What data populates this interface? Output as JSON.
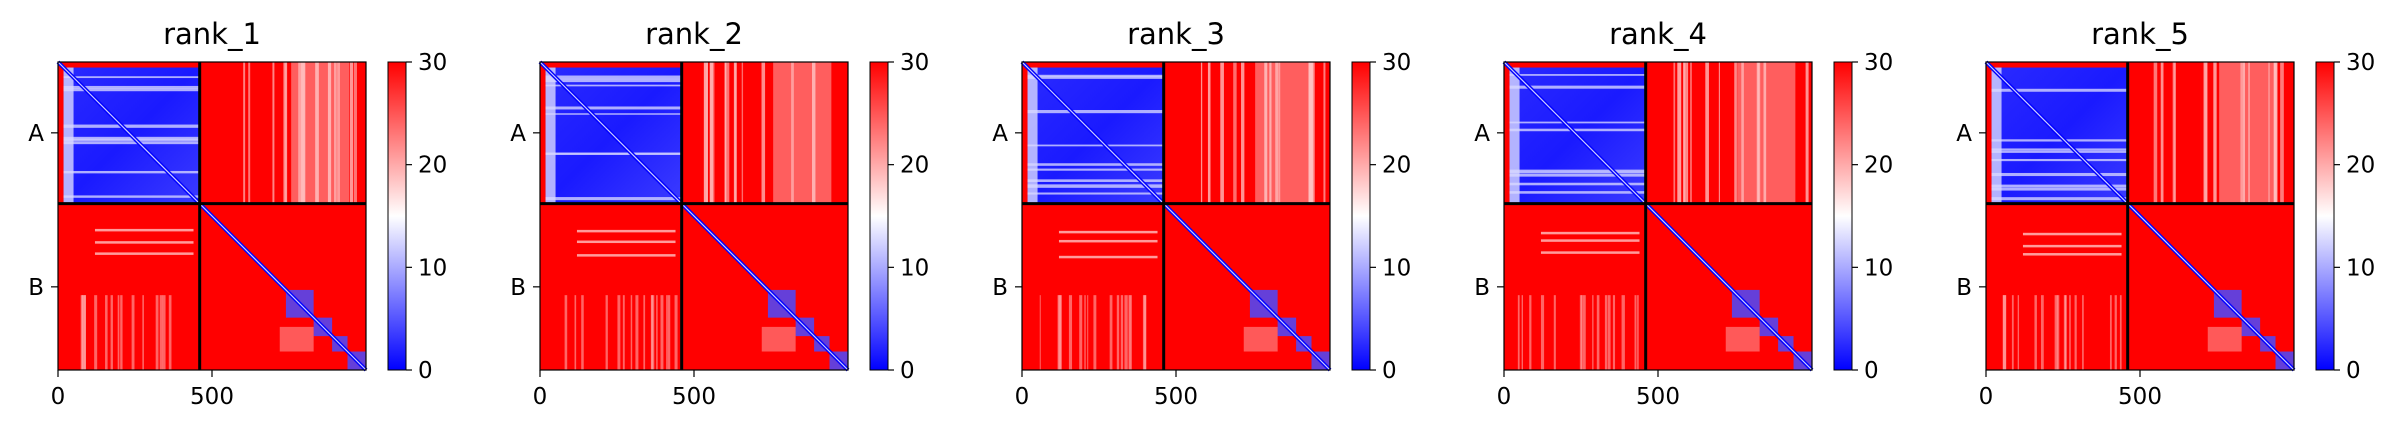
{
  "chart_data": [
    {
      "type": "heatmap",
      "title": "rank_1",
      "xlabel": "",
      "ylabel": "",
      "x_ticks": [
        0,
        500
      ],
      "y_tick_labels": [
        "A",
        "B"
      ],
      "chain_lengths": {
        "A": 460,
        "B": 540
      },
      "total_length": 1000,
      "colorbar": {
        "range": [
          0,
          30
        ],
        "ticks": [
          0,
          10,
          20,
          30
        ],
        "colormap": "bwr"
      },
      "grid": false
    },
    {
      "type": "heatmap",
      "title": "rank_2",
      "xlabel": "",
      "ylabel": "",
      "x_ticks": [
        0,
        500
      ],
      "y_tick_labels": [
        "A",
        "B"
      ],
      "chain_lengths": {
        "A": 460,
        "B": 540
      },
      "total_length": 1000,
      "colorbar": {
        "range": [
          0,
          30
        ],
        "ticks": [
          0,
          10,
          20,
          30
        ],
        "colormap": "bwr"
      },
      "grid": false
    },
    {
      "type": "heatmap",
      "title": "rank_3",
      "xlabel": "",
      "ylabel": "",
      "x_ticks": [
        0,
        500
      ],
      "y_tick_labels": [
        "A",
        "B"
      ],
      "chain_lengths": {
        "A": 460,
        "B": 540
      },
      "total_length": 1000,
      "colorbar": {
        "range": [
          0,
          30
        ],
        "ticks": [
          0,
          10,
          20,
          30
        ],
        "colormap": "bwr"
      },
      "grid": false
    },
    {
      "type": "heatmap",
      "title": "rank_4",
      "xlabel": "",
      "ylabel": "",
      "x_ticks": [
        0,
        500
      ],
      "y_tick_labels": [
        "A",
        "B"
      ],
      "chain_lengths": {
        "A": 460,
        "B": 540
      },
      "total_length": 1000,
      "colorbar": {
        "range": [
          0,
          30
        ],
        "ticks": [
          0,
          10,
          20,
          30
        ],
        "colormap": "bwr"
      },
      "grid": false
    },
    {
      "type": "heatmap",
      "title": "rank_5",
      "xlabel": "",
      "ylabel": "",
      "x_ticks": [
        0,
        500
      ],
      "y_tick_labels": [
        "A",
        "B"
      ],
      "chain_lengths": {
        "A": 460,
        "B": 540
      },
      "total_length": 1000,
      "colorbar": {
        "range": [
          0,
          30
        ],
        "ticks": [
          0,
          10,
          20,
          30
        ],
        "colormap": "bwr"
      },
      "grid": false
    }
  ],
  "colors": {
    "low": "#0000ff",
    "mid": "#ffffff",
    "high": "#ff0000",
    "divider": "#000000"
  }
}
